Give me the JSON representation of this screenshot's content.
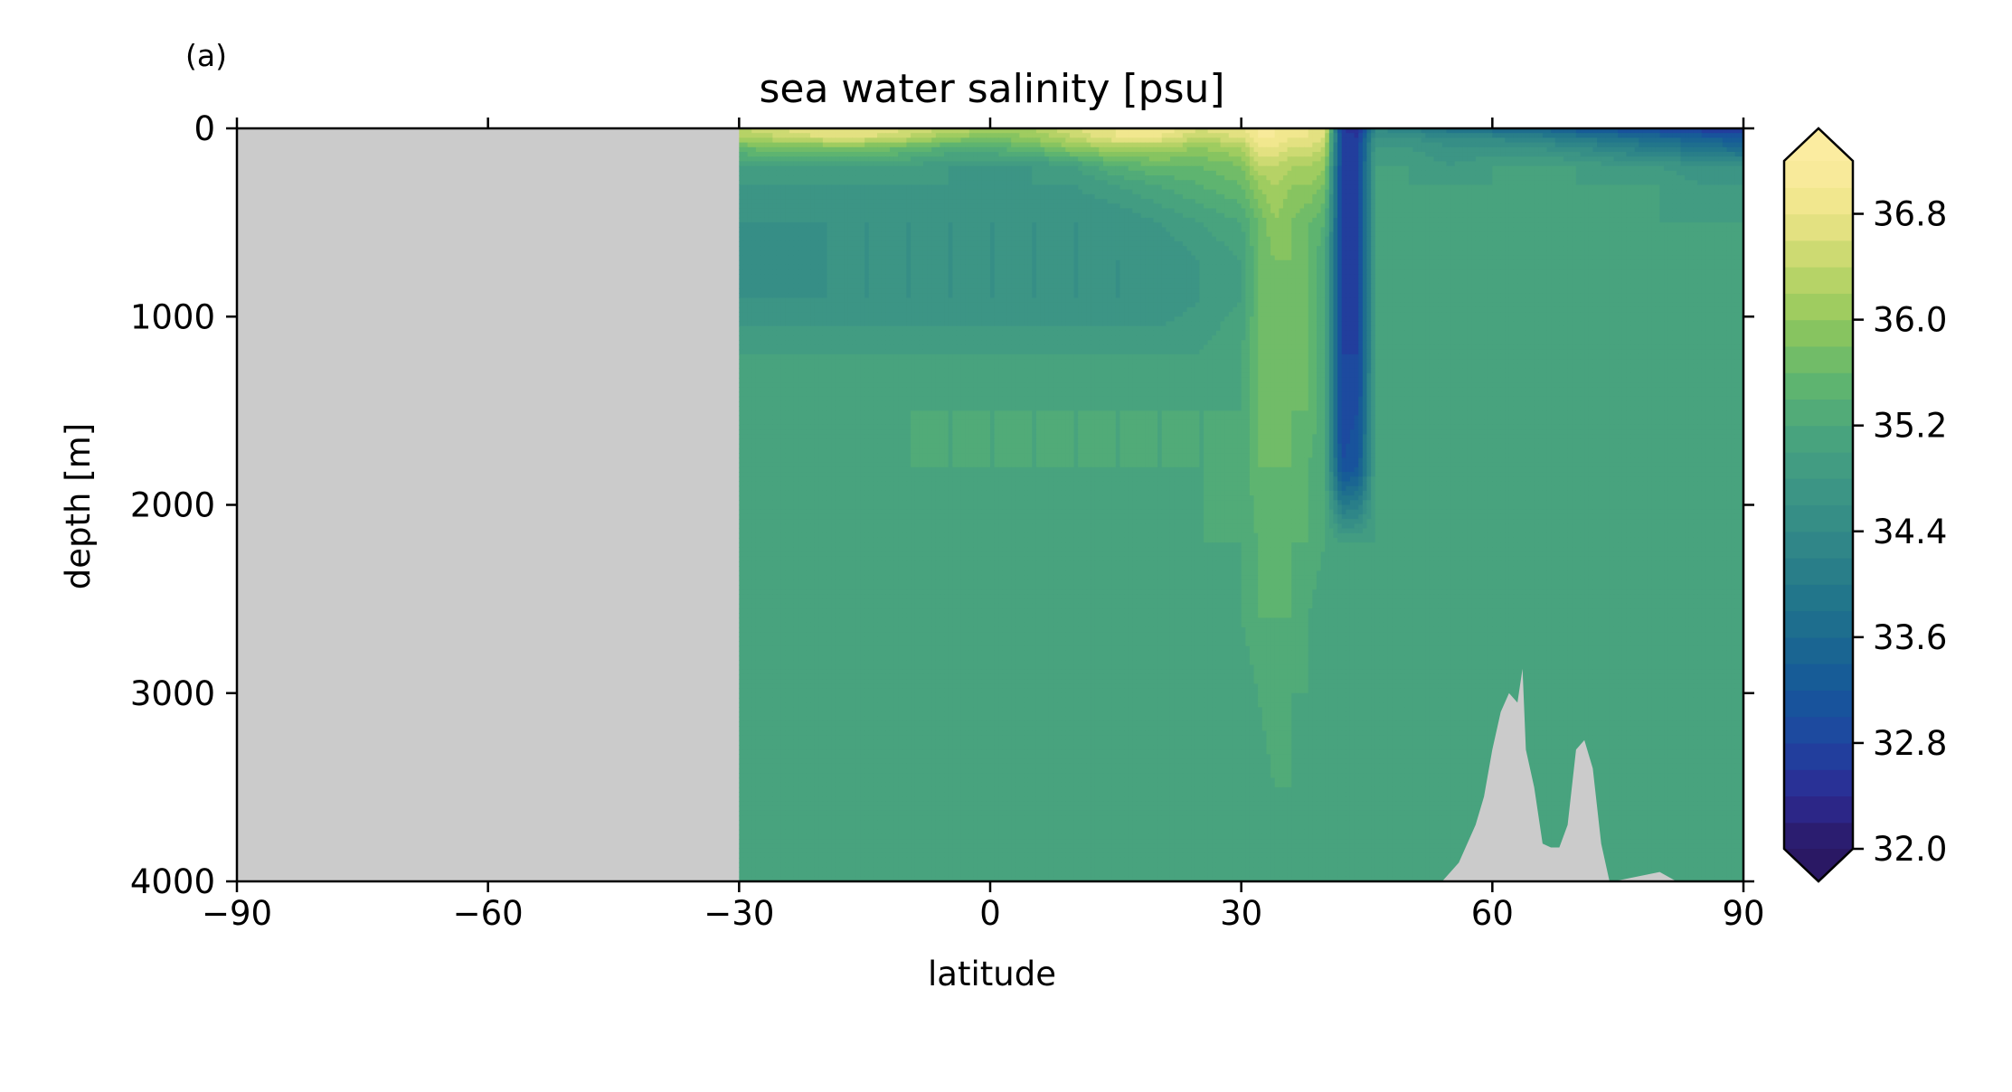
{
  "chart_data": {
    "type": "heatmap",
    "panel_label": "(a)",
    "title": "sea water salinity [psu]",
    "xlabel": "latitude",
    "ylabel": "depth [m]",
    "xlim": [
      -90,
      90
    ],
    "ylim": [
      4000,
      0
    ],
    "y_inverted": true,
    "xticks": [
      -90,
      -60,
      -30,
      0,
      30,
      60,
      90
    ],
    "xtick_labels": [
      "−90",
      "−60",
      "−30",
      "0",
      "30",
      "60",
      "90"
    ],
    "yticks": [
      0,
      1000,
      2000,
      3000,
      4000
    ],
    "ytick_labels": [
      "0",
      "1000",
      "2000",
      "3000",
      "4000"
    ],
    "grid": false,
    "colormap": "haline",
    "missing_color": "#cbcbcb",
    "colorbar": {
      "min": 32.0,
      "max": 37.2,
      "step": 0.2,
      "extend": "both",
      "ticks": [
        32.0,
        32.8,
        33.6,
        34.4,
        35.2,
        36.0,
        36.8
      ],
      "tick_labels": [
        "32.0",
        "32.8",
        "33.6",
        "34.4",
        "35.2",
        "36.0",
        "36.8"
      ],
      "color_stops": [
        [
          32.0,
          "#2a1864"
        ],
        [
          32.4,
          "#2c2a92"
        ],
        [
          32.8,
          "#1f45a0"
        ],
        [
          33.2,
          "#16579a"
        ],
        [
          33.6,
          "#1b6a8f"
        ],
        [
          34.0,
          "#257a8a"
        ],
        [
          34.4,
          "#338a87"
        ],
        [
          34.8,
          "#3f9884"
        ],
        [
          35.2,
          "#4ba77c"
        ],
        [
          35.6,
          "#65b86c"
        ],
        [
          36.0,
          "#93c85c"
        ],
        [
          36.4,
          "#c2d66a"
        ],
        [
          36.8,
          "#eee588"
        ],
        [
          37.2,
          "#fbeca0"
        ]
      ]
    },
    "data_extent_lat": [
      -30,
      90
    ],
    "no_data_region": "latitude -90 to -30",
    "latitude": [
      -30,
      -25,
      -20,
      -15,
      -10,
      -5,
      0,
      5,
      10,
      15,
      20,
      25,
      30,
      32,
      34,
      36,
      38,
      40,
      42,
      44,
      46,
      50,
      55,
      60,
      65,
      70,
      75,
      80,
      85,
      90
    ],
    "depth": [
      0,
      50,
      100,
      200,
      300,
      500,
      700,
      900,
      1200,
      1500,
      1800,
      2200,
      2600,
      3000,
      3500,
      4000
    ],
    "salinity": [
      [
        36.4,
        36.6,
        36.8,
        36.8,
        36.6,
        36.4,
        36.2,
        36.2,
        36.6,
        36.8,
        37.0,
        36.6,
        36.8,
        37.0,
        37.0,
        37.0,
        36.8,
        36.8,
        32.6,
        32.4,
        34.4,
        34.2,
        33.8,
        33.6,
        33.6,
        33.2,
        33.0,
        32.8,
        32.6,
        32.6
      ],
      [
        36.2,
        36.4,
        36.6,
        36.6,
        36.4,
        36.0,
        35.8,
        36.0,
        36.4,
        36.8,
        36.8,
        36.4,
        36.6,
        37.0,
        37.0,
        36.8,
        36.8,
        36.6,
        32.8,
        32.6,
        34.6,
        34.6,
        34.4,
        34.4,
        34.2,
        34.0,
        33.8,
        33.6,
        33.4,
        33.2
      ],
      [
        35.6,
        35.8,
        35.8,
        35.8,
        35.6,
        35.4,
        35.4,
        35.6,
        36.0,
        36.2,
        36.2,
        36.0,
        36.2,
        36.8,
        36.8,
        36.6,
        36.6,
        36.4,
        32.8,
        32.8,
        34.8,
        34.8,
        34.6,
        34.6,
        34.6,
        34.4,
        34.2,
        34.0,
        33.8,
        33.6
      ],
      [
        35.0,
        35.0,
        35.0,
        35.0,
        35.0,
        34.8,
        34.8,
        34.8,
        35.0,
        35.4,
        35.6,
        35.6,
        35.8,
        36.4,
        36.4,
        36.2,
        36.2,
        36.0,
        32.8,
        32.8,
        35.0,
        35.0,
        34.8,
        35.0,
        35.0,
        35.0,
        34.8,
        34.8,
        34.6,
        34.6
      ],
      [
        34.8,
        34.8,
        34.8,
        34.8,
        34.8,
        34.8,
        34.8,
        34.8,
        34.8,
        35.0,
        35.2,
        35.4,
        35.6,
        36.0,
        36.2,
        36.0,
        36.0,
        35.8,
        32.8,
        32.8,
        35.0,
        35.0,
        35.0,
        35.0,
        35.0,
        35.0,
        35.0,
        35.0,
        34.8,
        34.8
      ],
      [
        34.6,
        34.6,
        34.6,
        34.6,
        34.6,
        34.6,
        34.6,
        34.6,
        34.6,
        34.6,
        34.8,
        35.0,
        35.2,
        35.6,
        36.0,
        35.8,
        35.6,
        35.4,
        32.8,
        32.8,
        35.0,
        35.2,
        35.0,
        35.0,
        35.0,
        35.0,
        35.0,
        35.0,
        35.0,
        35.0
      ],
      [
        34.4,
        34.4,
        34.6,
        34.6,
        34.6,
        34.6,
        34.6,
        34.6,
        34.6,
        34.6,
        34.6,
        34.8,
        35.0,
        35.6,
        35.8,
        35.8,
        35.6,
        35.2,
        32.8,
        32.8,
        35.0,
        35.2,
        35.0,
        35.0,
        35.0,
        35.0,
        35.0,
        35.0,
        35.0,
        35.0
      ],
      [
        34.6,
        34.6,
        34.6,
        34.6,
        34.6,
        34.6,
        34.6,
        34.6,
        34.6,
        34.6,
        34.6,
        34.8,
        35.0,
        35.6,
        35.8,
        35.8,
        35.6,
        35.2,
        32.8,
        32.8,
        35.0,
        35.2,
        35.0,
        35.0,
        35.0,
        35.0,
        35.0,
        35.0,
        35.0,
        35.0
      ],
      [
        35.0,
        35.0,
        35.0,
        35.0,
        35.0,
        35.0,
        35.0,
        35.0,
        35.0,
        35.0,
        35.0,
        35.0,
        35.2,
        35.6,
        35.8,
        35.8,
        35.6,
        35.2,
        32.8,
        32.8,
        35.0,
        35.2,
        35.0,
        35.0,
        35.0,
        35.0,
        35.0,
        35.0,
        35.0,
        35.0
      ],
      [
        35.0,
        35.0,
        35.2,
        35.2,
        35.2,
        35.2,
        35.2,
        35.2,
        35.2,
        35.2,
        35.2,
        35.2,
        35.2,
        35.6,
        35.8,
        35.6,
        35.6,
        35.2,
        32.8,
        33.0,
        35.0,
        35.2,
        35.0,
        35.0,
        35.0,
        35.0,
        35.0,
        35.0,
        35.0,
        35.0
      ],
      [
        35.0,
        35.2,
        35.2,
        35.0,
        35.2,
        35.2,
        35.2,
        35.2,
        35.2,
        35.2,
        35.2,
        35.2,
        35.2,
        35.6,
        35.6,
        35.6,
        35.4,
        35.2,
        33.0,
        33.2,
        35.0,
        35.2,
        35.0,
        35.0,
        35.0,
        35.0,
        35.0,
        35.0,
        35.0,
        35.0
      ],
      [
        35.0,
        35.0,
        35.0,
        35.0,
        35.0,
        35.0,
        35.0,
        35.0,
        35.0,
        35.0,
        35.0,
        35.2,
        35.2,
        35.4,
        35.6,
        35.4,
        35.4,
        35.2,
        35.0,
        35.0,
        35.0,
        35.0,
        35.0,
        35.0,
        35.0,
        35.0,
        35.0,
        35.0,
        35.0,
        35.0
      ],
      [
        35.0,
        35.0,
        35.0,
        35.0,
        35.0,
        35.0,
        35.0,
        35.0,
        35.0,
        35.0,
        35.0,
        35.0,
        35.2,
        35.4,
        35.4,
        35.4,
        35.2,
        35.0,
        35.0,
        35.0,
        35.0,
        35.0,
        35.0,
        35.0,
        35.0,
        35.0,
        35.0,
        35.0,
        35.0,
        35.0
      ],
      [
        35.0,
        35.0,
        35.0,
        35.0,
        35.0,
        35.0,
        35.0,
        35.0,
        35.0,
        35.0,
        35.0,
        35.0,
        35.0,
        35.2,
        35.4,
        35.2,
        35.2,
        35.0,
        35.0,
        35.0,
        35.0,
        35.0,
        35.0,
        35.0,
        35.0,
        35.0,
        35.0,
        35.0,
        35.0,
        35.0
      ],
      [
        35.0,
        35.0,
        35.0,
        35.0,
        35.0,
        35.0,
        35.0,
        35.0,
        35.0,
        35.0,
        35.0,
        35.0,
        35.0,
        35.0,
        35.2,
        35.2,
        35.0,
        35.0,
        35.0,
        35.0,
        35.0,
        35.0,
        35.0,
        35.0,
        35.0,
        35.0,
        35.0,
        35.0,
        35.0,
        35.0
      ],
      [
        35.0,
        35.0,
        35.0,
        35.0,
        35.0,
        35.0,
        35.0,
        35.0,
        35.0,
        35.0,
        35.0,
        35.0,
        35.0,
        35.0,
        35.2,
        35.0,
        35.0,
        35.0,
        35.0,
        35.0,
        35.0,
        35.0,
        35.0,
        35.0,
        35.0,
        35.0,
        35.0,
        35.0,
        35.0,
        35.0
      ]
    ],
    "topography": [
      [
        54,
        4000
      ],
      [
        55,
        3950
      ],
      [
        56,
        3900
      ],
      [
        57,
        3800
      ],
      [
        58,
        3700
      ],
      [
        59,
        3550
      ],
      [
        60,
        3300
      ],
      [
        61,
        3100
      ],
      [
        62,
        3000
      ],
      [
        63,
        3050
      ],
      [
        63.6,
        2870
      ],
      [
        64,
        3300
      ],
      [
        65,
        3500
      ],
      [
        66,
        3800
      ],
      [
        67,
        3820
      ],
      [
        68,
        3820
      ],
      [
        69,
        3700
      ],
      [
        70,
        3300
      ],
      [
        71,
        3250
      ],
      [
        72,
        3400
      ],
      [
        73,
        3800
      ],
      [
        74,
        4000
      ],
      [
        74.5,
        4000
      ],
      [
        80,
        3950
      ],
      [
        82,
        4000
      ]
    ]
  }
}
